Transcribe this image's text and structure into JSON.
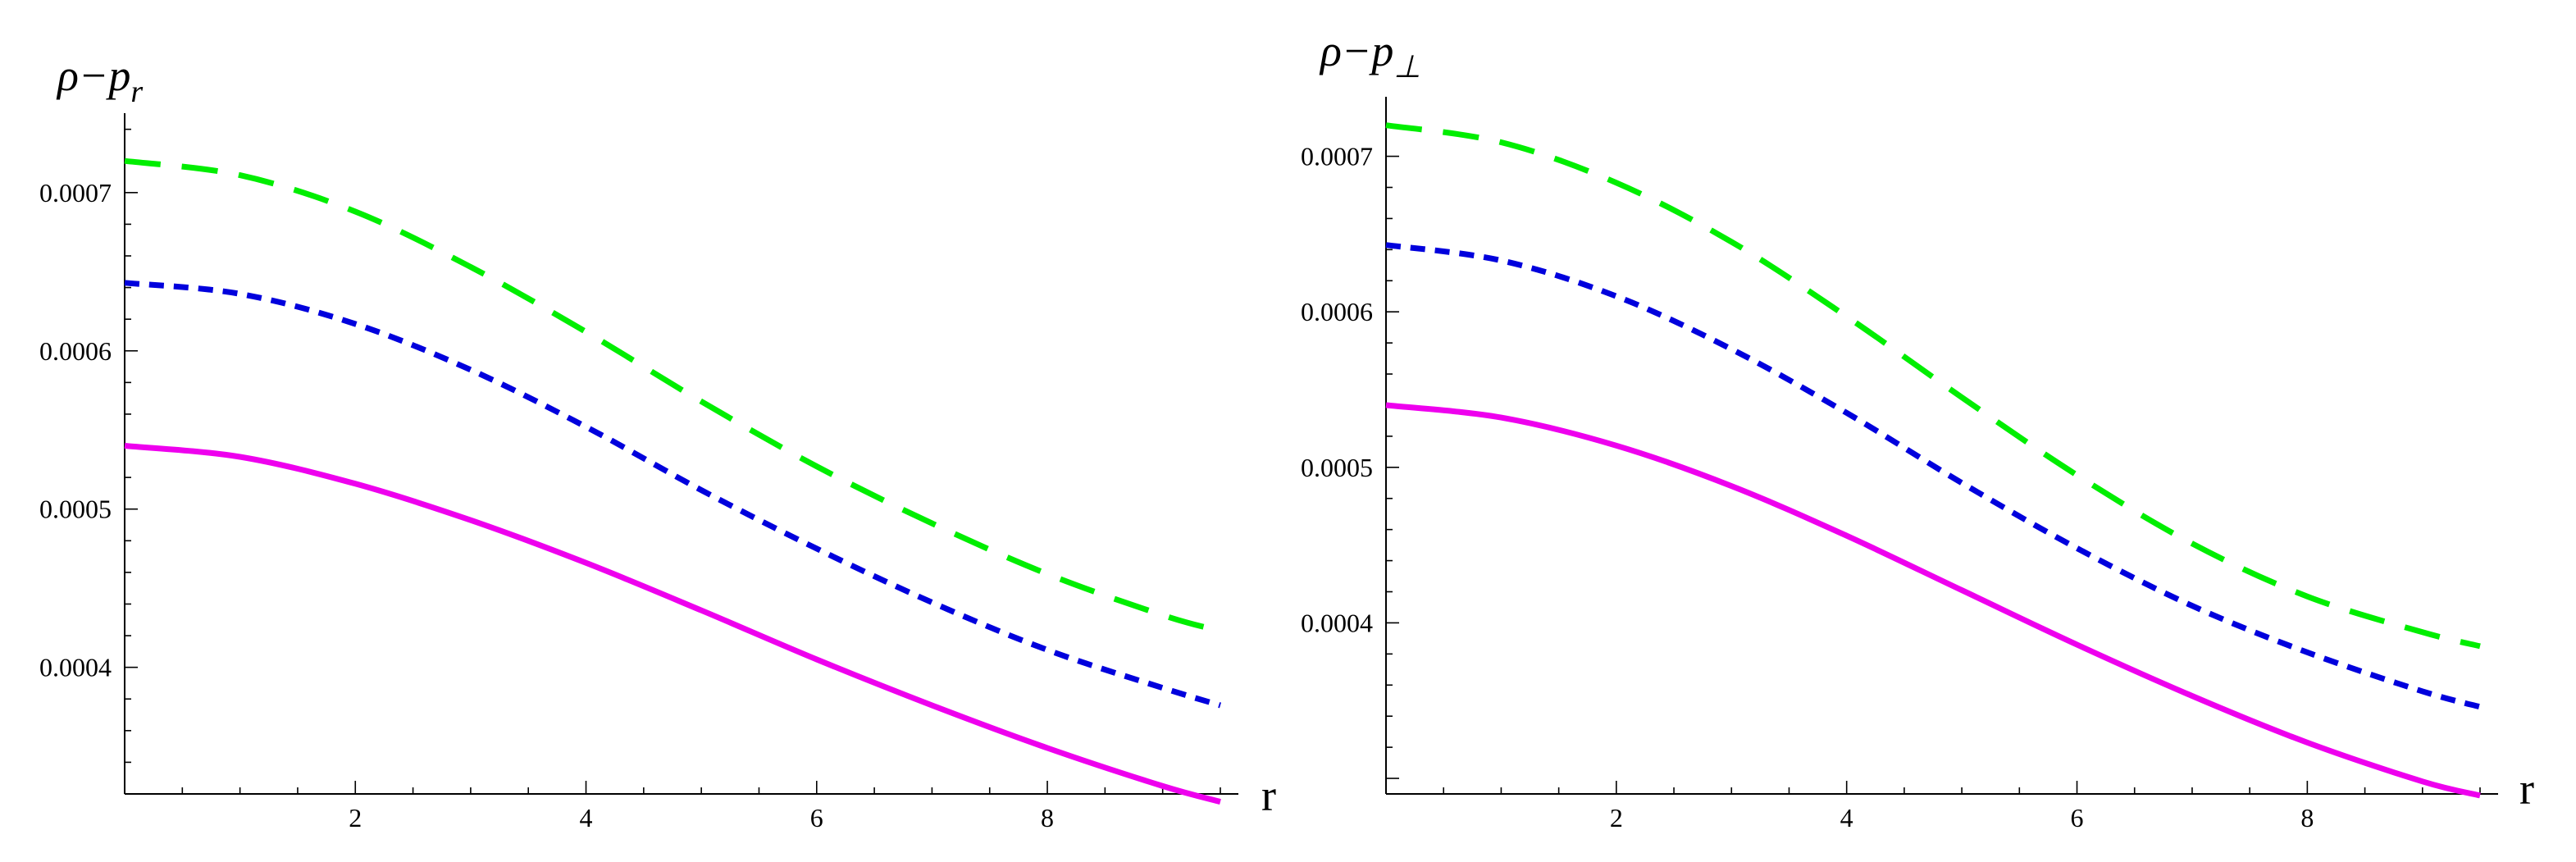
{
  "chart_data": [
    {
      "type": "line",
      "title": "",
      "ylabel": "ρ−p_r",
      "ylabel_main": "ρ−p",
      "ylabel_sub": "r",
      "xlabel": "r",
      "xlim": [
        0,
        9.5
      ],
      "ylim": [
        0.00032,
        0.000745
      ],
      "xticks": [
        2,
        4,
        6,
        8
      ],
      "yticks": [
        0.0004,
        0.0005,
        0.0006,
        0.0007
      ],
      "ytick_labels": [
        "0.0004",
        "0.0005",
        "0.0006",
        "0.0007"
      ],
      "grid": false,
      "x": [
        0,
        1,
        2,
        3,
        4,
        5,
        6,
        7,
        8,
        9,
        9.5
      ],
      "series": [
        {
          "color": "#00ee00",
          "style": "long-dash",
          "values": [
            0.00072,
            0.000711,
            0.000688,
            0.000653,
            0.000612,
            0.000568,
            0.000527,
            0.000491,
            0.000459,
            0.000433,
            0.000423
          ]
        },
        {
          "color": "#0000dd",
          "style": "short-dash",
          "values": [
            0.000643,
            0.000636,
            0.000617,
            0.000588,
            0.000552,
            0.000512,
            0.000475,
            0.000441,
            0.000411,
            0.000387,
            0.000376
          ]
        },
        {
          "color": "#ee00ee",
          "style": "solid",
          "values": [
            0.00054,
            0.000533,
            0.000516,
            0.000493,
            0.000466,
            0.000436,
            0.000405,
            0.000376,
            0.000349,
            0.000325,
            0.000315
          ]
        }
      ]
    },
    {
      "type": "line",
      "title": "",
      "ylabel": "ρ−p_⊥",
      "ylabel_main": "ρ−p",
      "ylabel_sub": "⊥",
      "xlabel": "r",
      "xlim": [
        0,
        9.5
      ],
      "ylim": [
        0.00029,
        0.000733
      ],
      "xticks": [
        2,
        4,
        6,
        8
      ],
      "yticks": [
        0.0004,
        0.0005,
        0.0006,
        0.0007
      ],
      "ytick_labels": [
        "0.0004",
        "0.0005",
        "0.0006",
        "0.0007"
      ],
      "grid": false,
      "x": [
        0,
        1,
        2,
        3,
        4,
        5,
        6,
        7,
        8,
        9,
        9.5
      ],
      "series": [
        {
          "color": "#00ee00",
          "style": "long-dash",
          "values": [
            0.00072,
            0.000709,
            0.000683,
            0.000645,
            0.000597,
            0.000545,
            0.000495,
            0.000451,
            0.000417,
            0.000394,
            0.000385
          ]
        },
        {
          "color": "#0000dd",
          "style": "short-dash",
          "values": [
            0.000643,
            0.000633,
            0.00061,
            0.000576,
            0.000535,
            0.00049,
            0.000448,
            0.000411,
            0.000381,
            0.000356,
            0.000346
          ]
        },
        {
          "color": "#ee00ee",
          "style": "solid",
          "values": [
            0.00054,
            0.000532,
            0.000514,
            0.000488,
            0.000456,
            0.000421,
            0.000386,
            0.000353,
            0.000323,
            0.000298,
            0.000289
          ]
        }
      ]
    }
  ]
}
